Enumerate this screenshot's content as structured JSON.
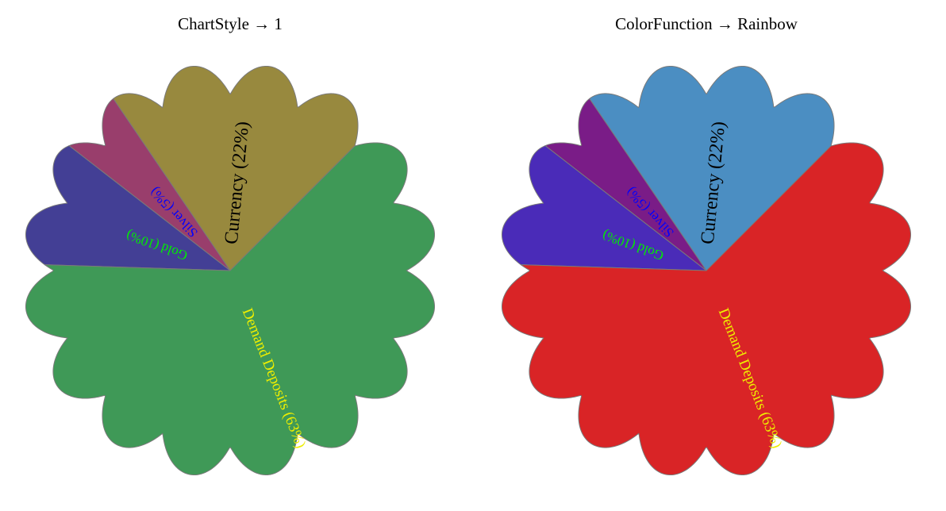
{
  "chart_data": [
    {
      "type": "pie",
      "title": "ChartStyle → 1",
      "categories": [
        "Currency (22%)",
        "Silver (5%)",
        "Gold (10%)",
        "Demand Deposits (63%)"
      ],
      "values": [
        22,
        5,
        10,
        63
      ],
      "colors": [
        "#98893e",
        "#993e6c",
        "#433f95",
        "#3f9957"
      ],
      "label_colors": [
        "#000000",
        "#0000ff",
        "#00ee00",
        "#eeee00"
      ],
      "edge_color": "#7a7a7a",
      "petal_count": 16
    },
    {
      "type": "pie",
      "title": "ColorFunction → Rainbow",
      "categories": [
        "Currency (22%)",
        "Silver (5%)",
        "Gold (10%)",
        "Demand Deposits (63%)"
      ],
      "values": [
        22,
        5,
        10,
        63
      ],
      "colors": [
        "#4b8ec2",
        "#7a1c87",
        "#4a2bb8",
        "#d92426"
      ],
      "label_colors": [
        "#000000",
        "#0000ff",
        "#00ee00",
        "#eeee00"
      ],
      "edge_color": "#7a7a7a",
      "petal_count": 16
    }
  ]
}
